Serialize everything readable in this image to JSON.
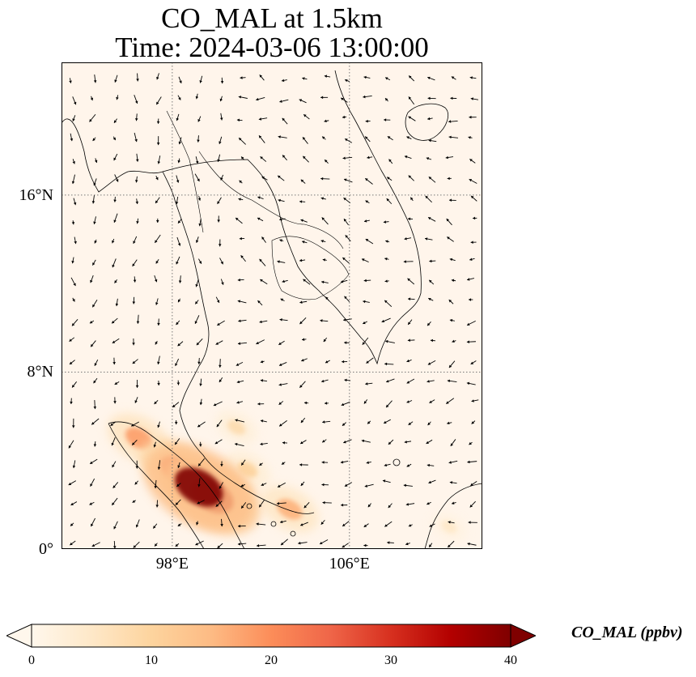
{
  "title_line1": "CO_MAL at 1.5km",
  "title_line2": "Time: 2024-03-06 13:00:00",
  "map": {
    "extent_lon": [
      93,
      112
    ],
    "extent_lat": [
      0,
      22
    ],
    "background_color": "#fff5eb",
    "y_ticks": [
      {
        "lat": 16,
        "label": "16°N"
      },
      {
        "lat": 8,
        "label": "8°N"
      },
      {
        "lat": 0,
        "label": "0°"
      }
    ],
    "x_ticks": [
      {
        "lon": 98,
        "label": "98°E"
      },
      {
        "lon": 106,
        "label": "106°E"
      }
    ],
    "gridlines": true,
    "wind_vectors": "black arrows"
  },
  "chart_data": {
    "type": "heatmap",
    "variable": "CO_MAL",
    "units": "ppbv",
    "colormap": "OrRd",
    "vmin": 0,
    "vmax": 40,
    "extend": "both",
    "hotspots": [
      {
        "lon": 99.2,
        "lat": 2.8,
        "value": 40
      },
      {
        "lon": 99.8,
        "lat": 2.4,
        "value": 34
      },
      {
        "lon": 98.2,
        "lat": 3.6,
        "value": 24
      },
      {
        "lon": 96.5,
        "lat": 5.0,
        "value": 18
      },
      {
        "lon": 103.3,
        "lat": 1.8,
        "value": 16
      },
      {
        "lon": 101.4,
        "lat": 3.6,
        "value": 10
      },
      {
        "lon": 100.9,
        "lat": 5.5,
        "value": 8
      },
      {
        "lon": 110.5,
        "lat": 1.0,
        "value": 5
      }
    ]
  },
  "colorbar": {
    "ticks": [
      "0",
      "10",
      "20",
      "30",
      "40"
    ],
    "tick_values": [
      0,
      10,
      20,
      30,
      40
    ],
    "label": "CO_MAL (ppbv)",
    "colors": [
      "#fff7ec",
      "#fee8c8",
      "#fdd49e",
      "#fdbb84",
      "#fc8d59",
      "#ef6548",
      "#d7301f",
      "#b30000",
      "#7f0000"
    ]
  }
}
